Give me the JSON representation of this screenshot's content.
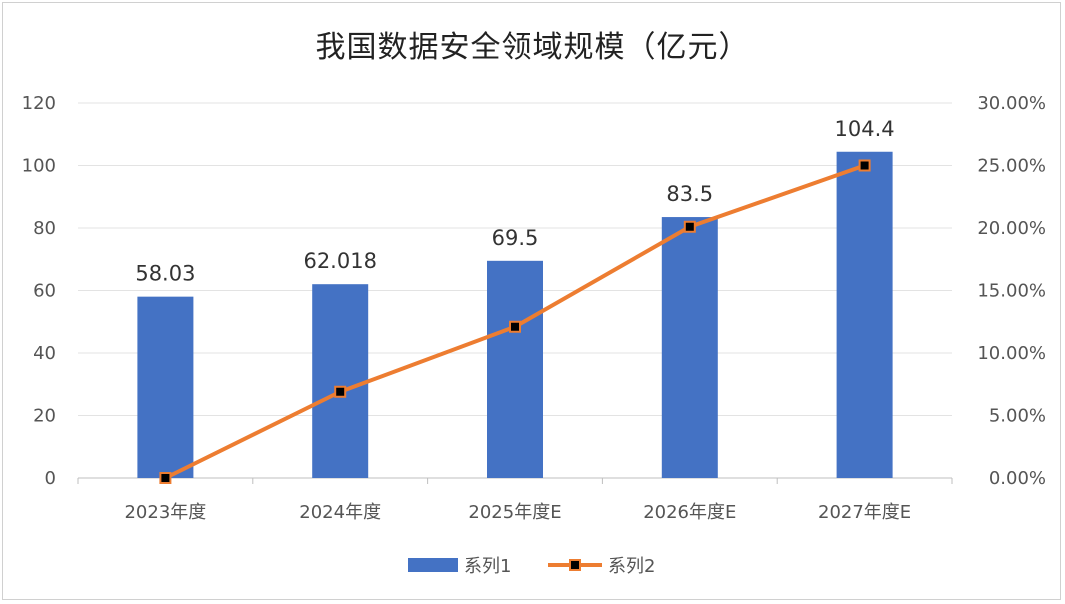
{
  "chart_data": {
    "type": "bar",
    "title": "我国数据安全领域规模（亿元）",
    "categories": [
      "2023年度",
      "2024年度",
      "2025年度E",
      "2026年度E",
      "2027年度E"
    ],
    "series": [
      {
        "name": "系列1",
        "type": "bar",
        "axis": "left",
        "values": [
          58.03,
          62.018,
          69.5,
          83.5,
          104.4
        ],
        "labels": [
          "58.03",
          "62.018",
          "69.5",
          "83.5",
          "104.4"
        ],
        "color": "#4472C4"
      },
      {
        "name": "系列2",
        "type": "line",
        "axis": "right",
        "values": [
          0.0,
          0.069,
          0.121,
          0.201,
          0.25
        ],
        "color": "#ED7D31",
        "marker_color": "#000000"
      }
    ],
    "y_left": {
      "min": 0,
      "max": 120,
      "ticks": [
        "0",
        "20",
        "40",
        "60",
        "80",
        "100",
        "120"
      ]
    },
    "y_right": {
      "min": 0,
      "max": 0.3,
      "ticks": [
        "0.00%",
        "5.00%",
        "10.00%",
        "15.00%",
        "20.00%",
        "25.00%",
        "30.00%"
      ]
    },
    "grid": true,
    "legend_position": "bottom"
  }
}
